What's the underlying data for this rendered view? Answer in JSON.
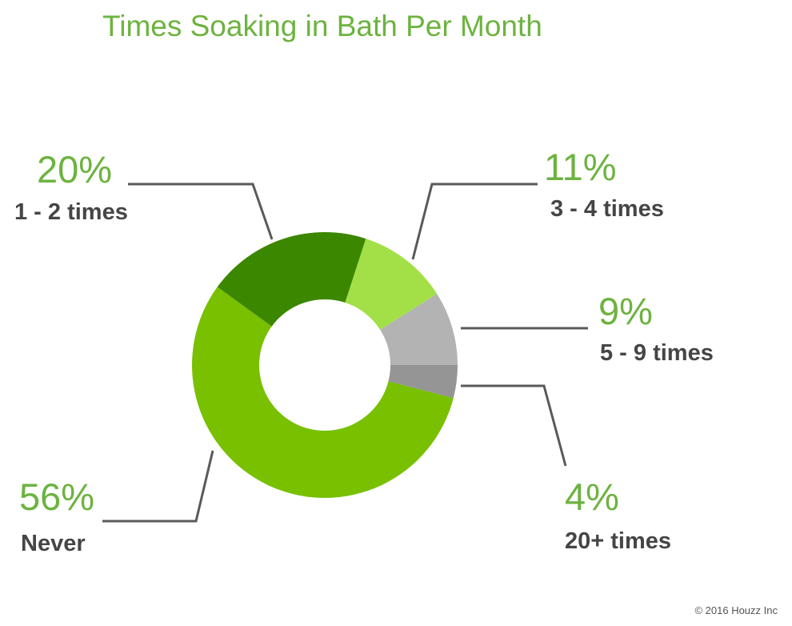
{
  "title": "Times Soaking in Bath Per Month",
  "copyright": "© 2016 Houzz Inc",
  "chart_data": {
    "type": "pie",
    "donut": true,
    "title": "Times Soaking in Bath Per Month",
    "slices": [
      {
        "label": "3 - 4 times",
        "value": 11,
        "value_label": "11%",
        "color": "#a3e048"
      },
      {
        "label": "5 - 9 times",
        "value": 9,
        "value_label": "9%",
        "color": "#b3b3b3"
      },
      {
        "label": "20+ times",
        "value": 4,
        "value_label": "4%",
        "color": "#959595"
      },
      {
        "label": "Never",
        "value": 56,
        "value_label": "56%",
        "color": "#78c000"
      },
      {
        "label": "1 - 2 times",
        "value": 20,
        "value_label": "20%",
        "color": "#3c8700"
      }
    ]
  }
}
